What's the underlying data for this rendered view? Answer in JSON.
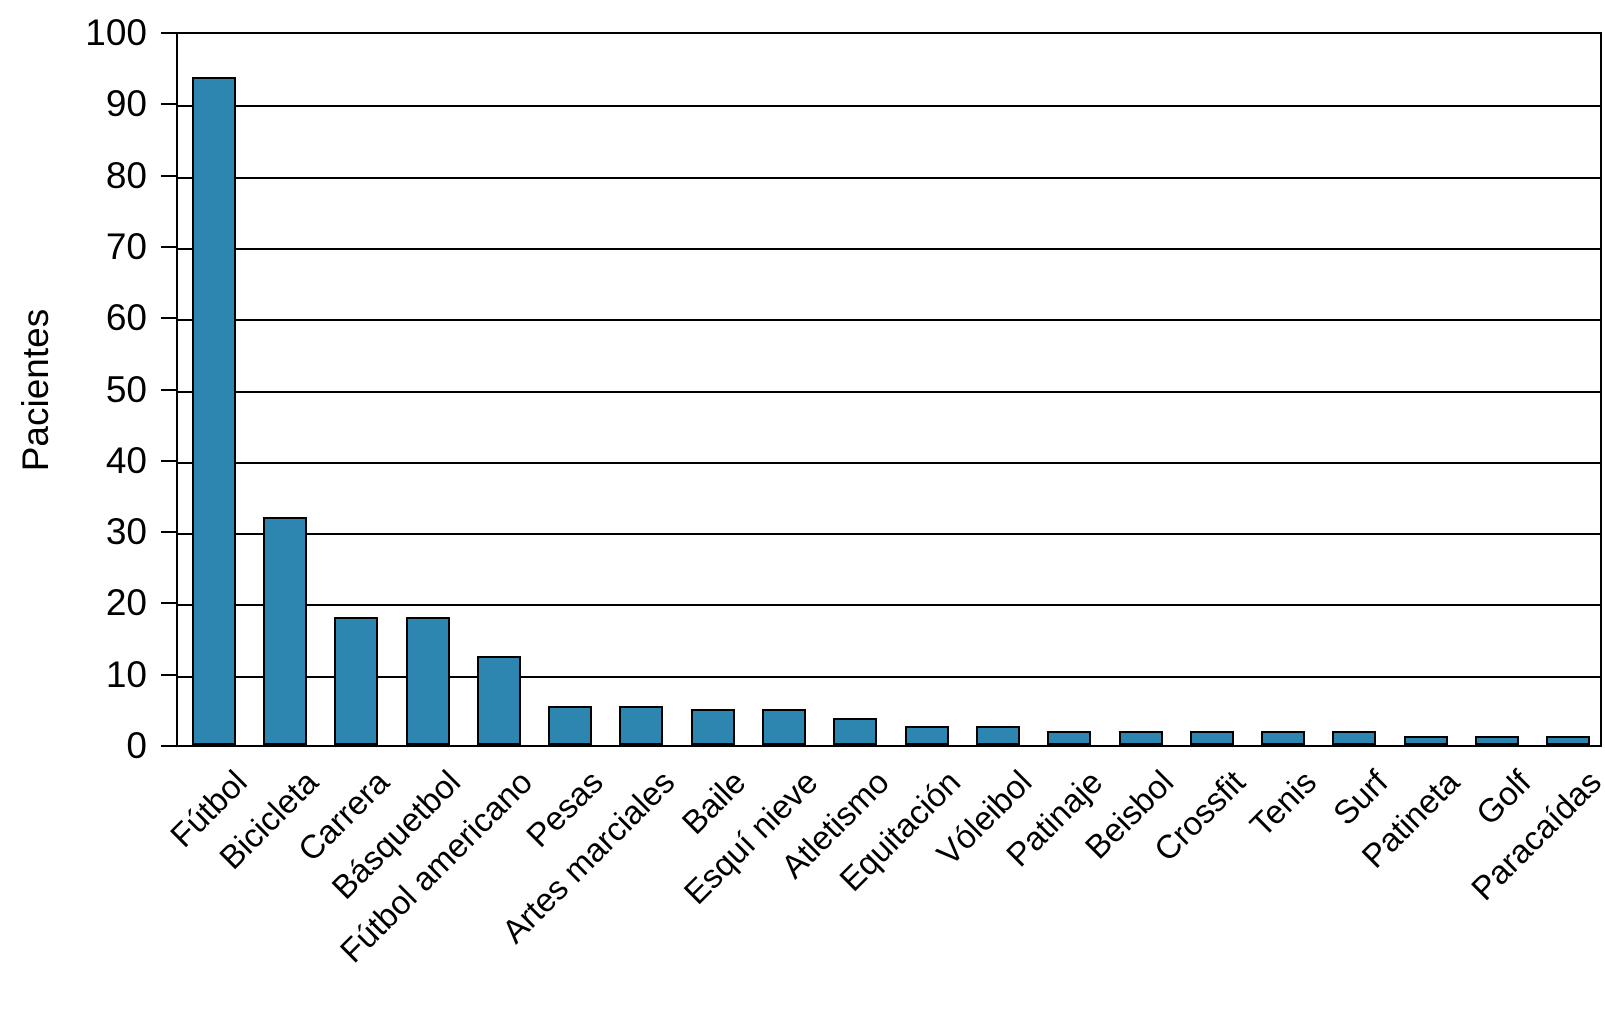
{
  "chart_data": {
    "type": "bar",
    "title": "",
    "xlabel": "",
    "ylabel": "Pacientes",
    "ylim": [
      0,
      100
    ],
    "yticks": [
      0,
      10,
      20,
      30,
      40,
      50,
      60,
      70,
      80,
      90,
      100
    ],
    "grid": "horizontal-black-lines",
    "legend": "none",
    "bar_color": "#2D86AF",
    "bar_border_color": "#000000",
    "categories": [
      "Fútbol",
      "Bicicleta",
      "Carrera",
      "Básquetbol",
      "Fútbol americano",
      "Pesas",
      "Artes marciales",
      "Baile",
      "Esquí nieve",
      "Atletismo",
      "Equitación",
      "Vóleibol",
      "Patinaje",
      "Beisbol",
      "Crossfit",
      "Tenis",
      "Surf",
      "Patineta",
      "Golf",
      "Paracaídas"
    ],
    "values": [
      93.7,
      32,
      18,
      18,
      12.5,
      5.5,
      5.5,
      5,
      5,
      3.8,
      2.6,
      2.6,
      2,
      2,
      2,
      2,
      2,
      1.3,
      1.3,
      1.3
    ]
  }
}
